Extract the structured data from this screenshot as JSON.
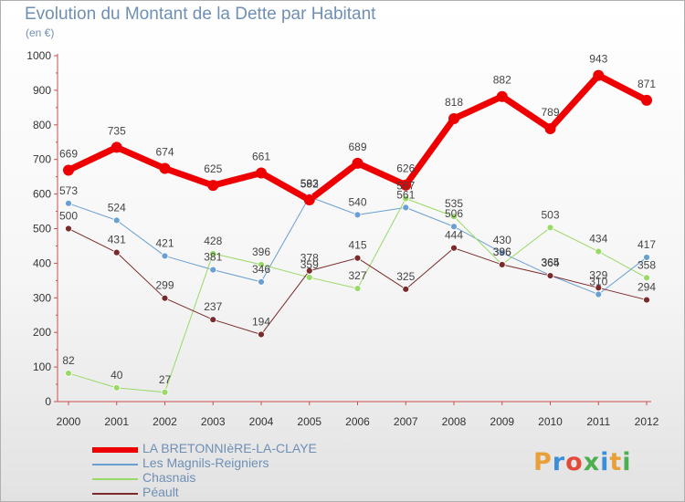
{
  "title": "Evolution du Montant de la Dette par Habitant",
  "unit": "(en €)",
  "logo": {
    "text": "Proxiti",
    "colors": [
      "#e8a03a",
      "#3b8fd8",
      "#e24b3a",
      "#4caf50",
      "#3b8fd8",
      "#e8a03a",
      "#4caf50"
    ]
  },
  "chart_data": {
    "type": "line",
    "x": [
      "2000",
      "2001",
      "2002",
      "2003",
      "2004",
      "2005",
      "2006",
      "2007",
      "2008",
      "2009",
      "2010",
      "2011",
      "2012"
    ],
    "ylim": [
      0,
      1000
    ],
    "yticks": [
      0,
      100,
      200,
      300,
      400,
      500,
      600,
      700,
      800,
      900,
      1000
    ],
    "grid": false,
    "legend_position": "bottom-left",
    "series": [
      {
        "name": "LA BRETONNIèRE-LA-CLAYE",
        "color": "#ee0000",
        "width": 7,
        "values": [
          669,
          735,
          674,
          625,
          661,
          583,
          689,
          626,
          818,
          882,
          789,
          943,
          871
        ],
        "labels": [
          "669",
          "735",
          "674",
          "625",
          "661",
          "583",
          "689",
          "626",
          "818",
          "882",
          "789",
          "943",
          "871"
        ]
      },
      {
        "name": "Les Magnils-Reigniers",
        "color": "#6a9fd4",
        "width": 1,
        "values": [
          573,
          524,
          421,
          381,
          346,
          592,
          540,
          561,
          506,
          430,
          365,
          310,
          417
        ],
        "labels": [
          "573",
          "524",
          "421",
          "381",
          "346",
          "592",
          "540",
          "561",
          "506",
          "430",
          "365",
          "310",
          "417"
        ]
      },
      {
        "name": "Chasnais",
        "color": "#99d966",
        "width": 1,
        "values": [
          82,
          40,
          27,
          428,
          396,
          359,
          327,
          587,
          535,
          396,
          503,
          434,
          358
        ],
        "labels": [
          "82",
          "40",
          "27",
          "428",
          "396",
          "359",
          "327",
          "587",
          "535",
          "396",
          "503",
          "434",
          "358"
        ]
      },
      {
        "name": "Péault",
        "color": "#7a2a2a",
        "width": 1,
        "values": [
          500,
          431,
          299,
          237,
          194,
          378,
          415,
          325,
          444,
          396,
          364,
          329,
          294
        ],
        "labels": [
          "500",
          "431",
          "299",
          "237",
          "194",
          "378",
          "415",
          "325",
          "444",
          "396",
          "364",
          "329",
          "294"
        ]
      }
    ]
  }
}
